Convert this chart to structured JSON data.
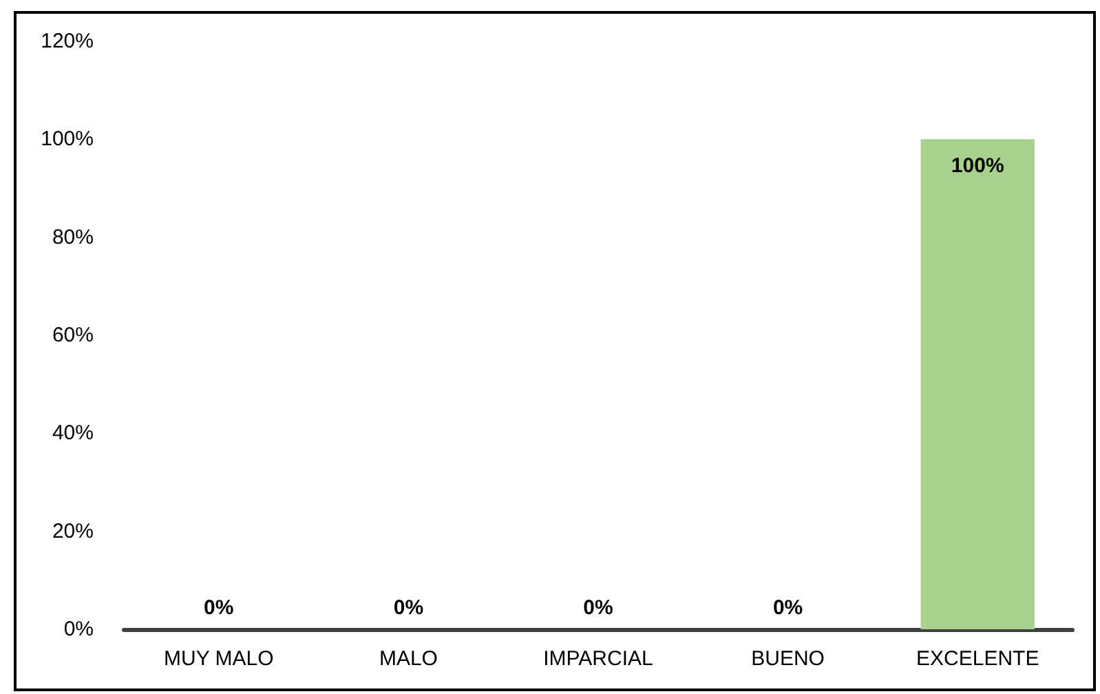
{
  "chart_data": {
    "type": "bar",
    "categories": [
      "MUY MALO",
      "MALO",
      "IMPARCIAL",
      "BUENO",
      "EXCELENTE"
    ],
    "values": [
      0,
      0,
      0,
      0,
      100
    ],
    "value_labels": [
      "0%",
      "0%",
      "0%",
      "0%",
      "100%"
    ],
    "color": "#a9d18e",
    "ylim": [
      0,
      120
    ],
    "yticks": [
      {
        "value": 0,
        "label": "0%"
      },
      {
        "value": 20,
        "label": "20%"
      },
      {
        "value": 40,
        "label": "40%"
      },
      {
        "value": 60,
        "label": "60%"
      },
      {
        "value": 80,
        "label": "80%"
      },
      {
        "value": 100,
        "label": "100%"
      },
      {
        "value": 120,
        "label": "120%"
      }
    ],
    "grid": false
  }
}
